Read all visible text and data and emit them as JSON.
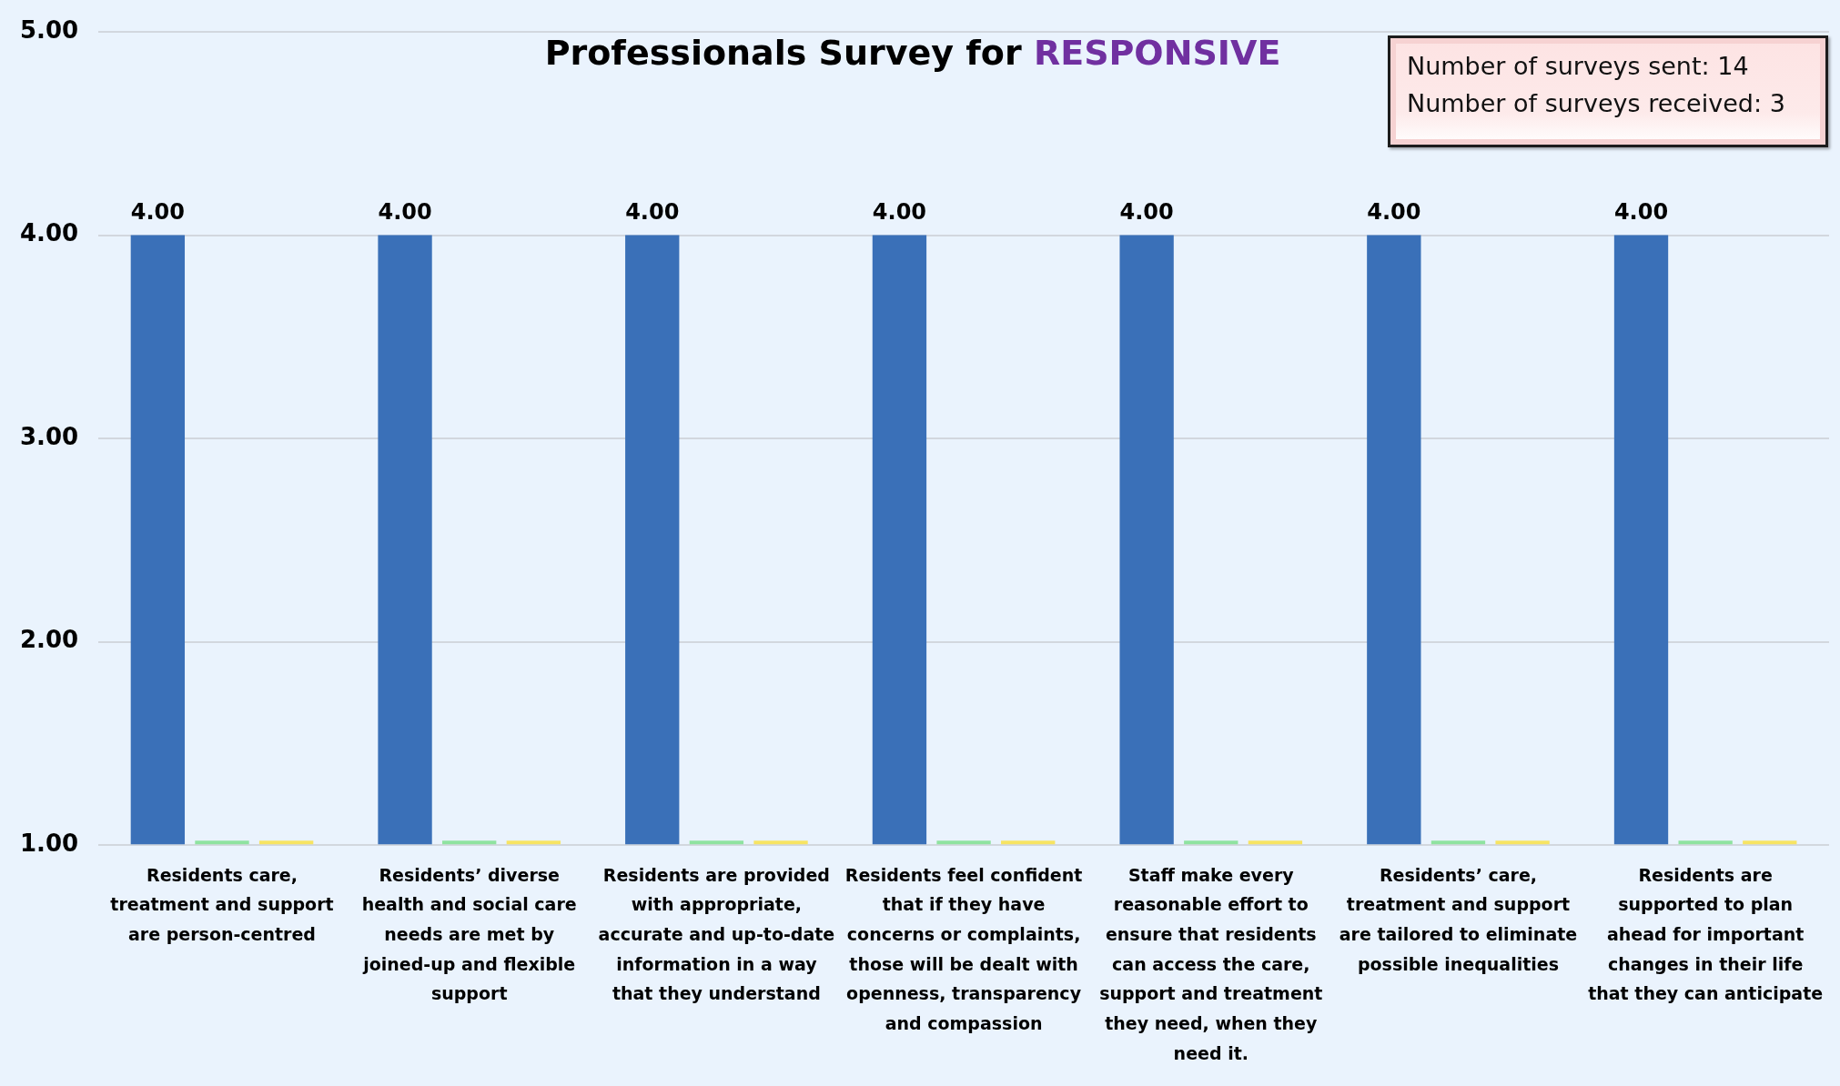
{
  "chart_data": {
    "type": "bar",
    "title": "Professionals Survey for RESPONSIVE",
    "annotations": [
      "Number of surveys sent: 14",
      "Number of surveys received: 3"
    ],
    "categories": [
      "Residents care, treatment and support are person-centred",
      "Residents’ diverse health and social care needs are met by joined-up and flexible support",
      "Residents are provided with appropriate, accurate and up-to-date information in a way that they understand",
      "Residents feel confident that if they have concerns or complaints, those will be dealt with openness, transparency and compassion",
      "Staff make every reasonable effort to ensure that residents can access the care, support and treatment they need, when they need it.",
      "Residents’ care, treatment and support are tailored to eliminate possible inequalities",
      "Residents are supported to plan ahead for important changes in their life that they can anticipate"
    ],
    "series": [
      {
        "color": "#3a70b8",
        "values": [
          4,
          4,
          4,
          4,
          4,
          4,
          4
        ],
        "value_labels": [
          "4.00",
          "4.00",
          "4.00",
          "4.00",
          "4.00",
          "4.00",
          "4.00"
        ]
      },
      {
        "color": "#8fe3a0",
        "values": [
          1,
          1,
          1,
          1,
          1,
          1,
          1
        ]
      },
      {
        "color": "#f7e463",
        "values": [
          1,
          1,
          1,
          1,
          1,
          1,
          1
        ]
      }
    ],
    "ylim": [
      1,
      5
    ],
    "yticks": [
      {
        "value": 1,
        "label": "1.00"
      },
      {
        "value": 2,
        "label": "2.00"
      },
      {
        "value": 3,
        "label": "3.00"
      },
      {
        "value": 4,
        "label": "4.00"
      },
      {
        "value": 5,
        "label": "5.00"
      }
    ],
    "grid": "y",
    "legend": false
  }
}
